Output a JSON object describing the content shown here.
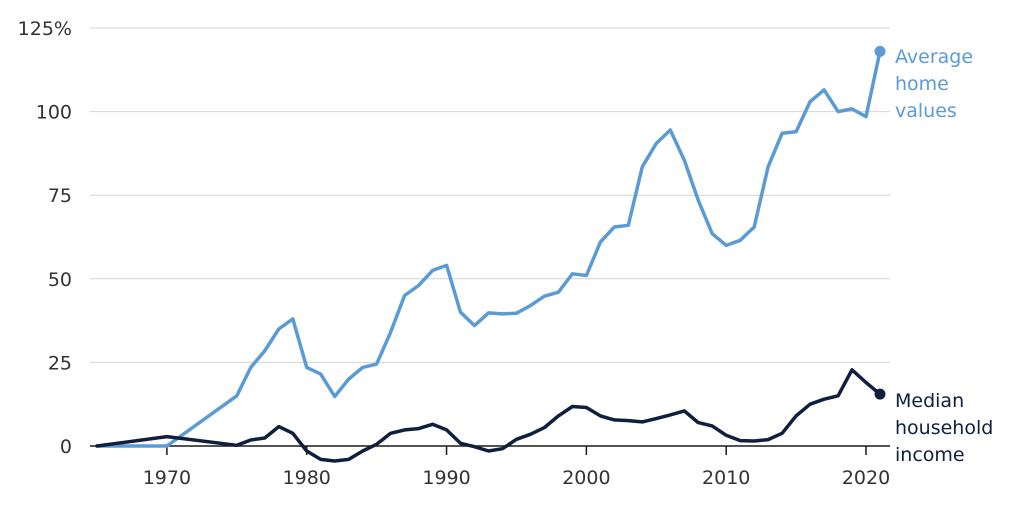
{
  "chart_data": {
    "type": "line",
    "title": "",
    "xlabel": "",
    "ylabel": "",
    "xlim": [
      1965,
      2021
    ],
    "ylim": [
      -5,
      125
    ],
    "x_ticks": [
      1970,
      1980,
      1990,
      2000,
      2010,
      2020
    ],
    "y_ticks": [
      {
        "value": 0,
        "label": "0"
      },
      {
        "value": 25,
        "label": "25"
      },
      {
        "value": 50,
        "label": "50"
      },
      {
        "value": 75,
        "label": "75"
      },
      {
        "value": 100,
        "label": "100"
      },
      {
        "value": 125,
        "label": "125%"
      }
    ],
    "grid": "horizontal",
    "legend": "direct labels at line ends",
    "series": [
      {
        "name": "Average home values",
        "label_lines": [
          "Average",
          "home",
          "values"
        ],
        "color": "#5b9bd5",
        "x": [
          1965,
          1970,
          1975,
          1976,
          1977,
          1978,
          1979,
          1980,
          1981,
          1982,
          1983,
          1984,
          1985,
          1986,
          1987,
          1988,
          1989,
          1990,
          1991,
          1992,
          1993,
          1994,
          1995,
          1996,
          1997,
          1998,
          1999,
          2000,
          2001,
          2002,
          2003,
          2004,
          2005,
          2006,
          2007,
          2008,
          2009,
          2010,
          2011,
          2012,
          2013,
          2014,
          2015,
          2016,
          2017,
          2018,
          2019,
          2020,
          2021
        ],
        "values": [
          0,
          0,
          15,
          23.5,
          28.5,
          35,
          38,
          23.5,
          21.5,
          14.8,
          20,
          23.5,
          24.5,
          34,
          45,
          48,
          52.5,
          54,
          40,
          36,
          39.8,
          39.5,
          39.7,
          42,
          44.8,
          46,
          51.5,
          51,
          61,
          65.5,
          66,
          83.5,
          90.5,
          94.5,
          85.5,
          73.5,
          63.5,
          60,
          61.5,
          65.5,
          83.5,
          93.5,
          94,
          103,
          106.5,
          100,
          100.8,
          98.5,
          118
        ]
      },
      {
        "name": "Median household income",
        "label_lines": [
          "Median",
          "household",
          "income"
        ],
        "color": "#0f1f3d",
        "x": [
          1965,
          1970,
          1975,
          1976,
          1977,
          1978,
          1979,
          1980,
          1981,
          1982,
          1983,
          1984,
          1985,
          1986,
          1987,
          1988,
          1989,
          1990,
          1991,
          1992,
          1993,
          1994,
          1995,
          1996,
          1997,
          1998,
          1999,
          2000,
          2001,
          2002,
          2003,
          2004,
          2005,
          2006,
          2007,
          2008,
          2009,
          2010,
          2011,
          2012,
          2013,
          2014,
          2015,
          2016,
          2017,
          2018,
          2019,
          2020,
          2021
        ],
        "values": [
          0,
          2.8,
          0.2,
          1.8,
          2.4,
          5.8,
          3.8,
          -1.5,
          -4,
          -4.5,
          -4,
          -1.5,
          0.5,
          3.8,
          4.8,
          5.2,
          6.5,
          4.8,
          0.8,
          -0.2,
          -1.5,
          -0.8,
          2,
          3.5,
          5.5,
          9,
          11.8,
          11.5,
          9,
          7.8,
          7.6,
          7.2,
          8.2,
          9.3,
          10.5,
          7,
          6,
          3.2,
          1.6,
          1.5,
          1.9,
          3.8,
          9,
          12.5,
          14,
          15,
          22.8,
          19,
          15.5
        ]
      }
    ]
  }
}
